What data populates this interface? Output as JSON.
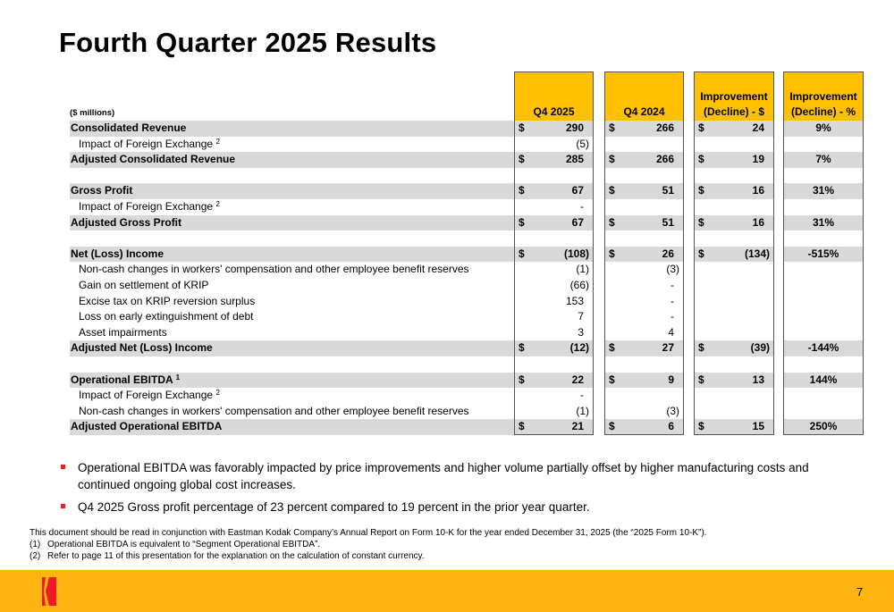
{
  "title": "Fourth Quarter 2025 Results",
  "table": {
    "units": "($ millions)",
    "columns": [
      {
        "line1": "",
        "line2": "Q4 2025"
      },
      {
        "line1": "",
        "line2": "Q4 2024"
      },
      {
        "line1": "Improvement",
        "line2": "(Decline) - $"
      },
      {
        "line1": "Improvement",
        "line2": "(Decline) - %"
      }
    ],
    "rows": [
      {
        "label": "Consolidated Revenue",
        "sup": "",
        "q25": "290",
        "q24": "266",
        "imp": "24",
        "pct": "9%"
      },
      {
        "label": "Impact of Foreign Exchange",
        "sup": "2",
        "q25": "(5)",
        "q24": "",
        "imp": "",
        "pct": ""
      },
      {
        "label": "Adjusted Consolidated Revenue",
        "sup": "",
        "q25": "285",
        "q24": "266",
        "imp": "19",
        "pct": "7%"
      },
      {
        "label": "",
        "sup": "",
        "q25": "",
        "q24": "",
        "imp": "",
        "pct": ""
      },
      {
        "label": "Gross Profit",
        "sup": "",
        "q25": "67",
        "q24": "51",
        "imp": "16",
        "pct": "31%"
      },
      {
        "label": "Impact of Foreign Exchange",
        "sup": "2",
        "q25": "-",
        "q24": "",
        "imp": "",
        "pct": ""
      },
      {
        "label": "Adjusted Gross Profit",
        "sup": "",
        "q25": "67",
        "q24": "51",
        "imp": "16",
        "pct": "31%"
      },
      {
        "label": "",
        "sup": "",
        "q25": "",
        "q24": "",
        "imp": "",
        "pct": ""
      },
      {
        "label": "Net (Loss) Income",
        "sup": "",
        "q25": "(108)",
        "q24": "26",
        "imp": "(134)",
        "pct": "-515%"
      },
      {
        "label": "Non-cash changes in workers' compensation and other employee benefit reserves",
        "sup": "",
        "q25": "(1)",
        "q24": "(3)",
        "imp": "",
        "pct": ""
      },
      {
        "label": "Gain on settlement of KRIP",
        "sup": "",
        "q25": "(66)",
        "q24": "-",
        "imp": "",
        "pct": ""
      },
      {
        "label": "Excise tax on KRIP reversion surplus",
        "sup": "",
        "q25": "153",
        "q24": "-",
        "imp": "",
        "pct": ""
      },
      {
        "label": "Loss on early extinguishment of debt",
        "sup": "",
        "q25": "7",
        "q24": "-",
        "imp": "",
        "pct": ""
      },
      {
        "label": "Asset impairments",
        "sup": "",
        "q25": "3",
        "q24": "4",
        "imp": "",
        "pct": ""
      },
      {
        "label": "Adjusted Net (Loss) Income",
        "sup": "",
        "q25": "(12)",
        "q24": "27",
        "imp": "(39)",
        "pct": "-144%"
      },
      {
        "label": "",
        "sup": "",
        "q25": "",
        "q24": "",
        "imp": "",
        "pct": ""
      },
      {
        "label": "Operational EBITDA",
        "sup": "1",
        "q25": "22",
        "q24": "9",
        "imp": "13",
        "pct": "144%"
      },
      {
        "label": "Impact of Foreign Exchange",
        "sup": "2",
        "q25": "-",
        "q24": "",
        "imp": "",
        "pct": ""
      },
      {
        "label": "Non-cash changes in workers' compensation and other employee benefit reserves",
        "sup": "",
        "q25": "(1)",
        "q24": "(3)",
        "imp": "",
        "pct": ""
      },
      {
        "label": "Adjusted Operational EBITDA",
        "sup": "",
        "q25": "21",
        "q24": "6",
        "imp": "15",
        "pct": "250%"
      }
    ]
  },
  "bullets": [
    "Operational EBITDA was favorably impacted by price improvements and higher volume partially offset by higher manufacturing costs and continued ongoing global cost increases.",
    "Q4 2025 Gross profit percentage of 23 percent compared to 19 percent in the prior year quarter."
  ],
  "notes": {
    "intro": "This document should be read in conjunction with Eastman Kodak Company’s Annual Report on Form 10-K for the year ended December 31, 2025 (the “2025 Form 10-K”).",
    "items": [
      {
        "num": "(1)",
        "text": "Operational EBITDA is equivalent to “Segment Operational EBITDA”."
      },
      {
        "num": "(2)",
        "text": "Refer to page 11 of this presentation for the explanation on the calculation of constant currency."
      }
    ]
  },
  "footer": {
    "page": "7",
    "logo": "kodak-logo-icon"
  },
  "colors": {
    "header_yellow": "#FFC000",
    "footer_yellow": "#FFB511",
    "shade": "#D9D9D9",
    "bullet_red": "#E8202A"
  }
}
